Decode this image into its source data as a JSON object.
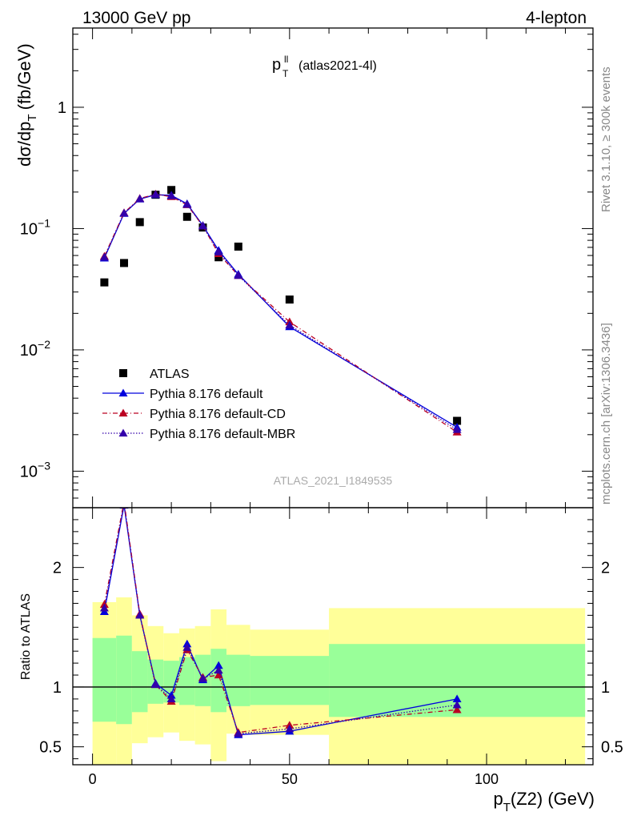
{
  "header": {
    "left": "13000 GeV pp",
    "right": "4-lepton"
  },
  "plot_title": {
    "main": "p",
    "sup": "ll",
    "sub": "T",
    "rest": "(atlas2021-4l)"
  },
  "side_labels": {
    "rivet": "Rivet 3.1.10, ≥ 300k events",
    "mcplots": "mcplots.cern.ch [arXiv:1306.3436]"
  },
  "watermark": "ATLAS_2021_I1849535",
  "colors": {
    "data": "#000000",
    "default": "#0000dd",
    "cd": "#bb0022",
    "mbr": "#3300aa",
    "band_inner": "#99ff99",
    "band_outer": "#ffff99"
  },
  "chart_data": [
    {
      "type": "scatter",
      "panel": "main",
      "ylabel": "dσ/dp_T (fb/GeV)",
      "ylabel_main": "dσ/dp",
      "ylabel_sub": "T",
      "ylabel_unit": "(fb/GeV)",
      "yscale": "log",
      "xlim": [
        -5,
        127
      ],
      "ylim": [
        0.0005,
        4.5
      ],
      "yticks": [
        {
          "value": 1,
          "mant": "1",
          "exp": ""
        },
        {
          "value": 0.1,
          "mant": "10",
          "exp": "−1"
        },
        {
          "value": 0.01,
          "mant": "10",
          "exp": "−2"
        },
        {
          "value": 0.001,
          "mant": "10",
          "exp": "−3"
        }
      ],
      "legend_position": "bottom-left",
      "series": [
        {
          "key": "atlas",
          "name": "ATLAS",
          "marker": "square",
          "x": [
            3,
            8,
            12,
            16,
            20,
            24,
            28,
            32,
            37,
            50,
            92.5
          ],
          "y": [
            0.036,
            0.052,
            0.113,
            0.19,
            0.208,
            0.125,
            0.102,
            0.058,
            0.071,
            0.026,
            0.0026
          ]
        },
        {
          "key": "default",
          "name": "Pythia 8.176 default",
          "marker": "triangle",
          "line": "solid",
          "x": [
            3,
            8,
            12,
            16,
            20,
            24,
            28,
            32,
            37,
            50,
            92.5
          ],
          "y": [
            0.057,
            0.133,
            0.175,
            0.19,
            0.188,
            0.16,
            0.106,
            0.066,
            0.042,
            0.0155,
            0.0023
          ]
        },
        {
          "key": "cd",
          "name": "Pythia 8.176 default-CD",
          "marker": "triangle",
          "line": "dashdot",
          "x": [
            3,
            8,
            12,
            16,
            20,
            24,
            28,
            32,
            37,
            50,
            92.5
          ],
          "y": [
            0.059,
            0.135,
            0.177,
            0.192,
            0.183,
            0.157,
            0.105,
            0.062,
            0.041,
            0.017,
            0.0021
          ]
        },
        {
          "key": "mbr",
          "name": "Pythia 8.176 default-MBR",
          "marker": "triangle",
          "line": "dotted",
          "x": [
            3,
            8,
            12,
            16,
            20,
            24,
            28,
            32,
            37,
            50,
            92.5
          ],
          "y": [
            0.058,
            0.134,
            0.176,
            0.191,
            0.186,
            0.158,
            0.105,
            0.064,
            0.041,
            0.016,
            0.0022
          ]
        }
      ]
    },
    {
      "type": "line",
      "panel": "ratio",
      "ylabel": "Ratio to ATLAS",
      "xlabel": "p_T(Z2) (GeV)",
      "xlabel_main": "p",
      "xlabel_sub": "T",
      "xlabel_rest": "(Z2) (GeV)",
      "xlim": [
        -5,
        127
      ],
      "ylim": [
        0.35,
        2.5
      ],
      "xticks": [
        0,
        50,
        100
      ],
      "yticks": [
        {
          "value": 0.5,
          "label": "0.5"
        },
        {
          "value": 1,
          "label": "1"
        },
        {
          "value": 2,
          "label": "2"
        }
      ],
      "bands": [
        {
          "x0": 0,
          "x1": 6,
          "inner": [
            0.71,
            1.41
          ],
          "outer": [
            0.35,
            1.71
          ]
        },
        {
          "x0": 6,
          "x1": 10,
          "inner": [
            0.69,
            1.43
          ],
          "outer": [
            0.35,
            1.75
          ]
        },
        {
          "x0": 10,
          "x1": 14,
          "inner": [
            0.79,
            1.3
          ],
          "outer": [
            0.53,
            1.6
          ]
        },
        {
          "x0": 14,
          "x1": 18,
          "inner": [
            0.86,
            1.23
          ],
          "outer": [
            0.58,
            1.51
          ]
        },
        {
          "x0": 18,
          "x1": 22,
          "inner": [
            0.87,
            1.22
          ],
          "outer": [
            0.62,
            1.45
          ]
        },
        {
          "x0": 22,
          "x1": 26,
          "inner": [
            0.85,
            1.25
          ],
          "outer": [
            0.55,
            1.49
          ]
        },
        {
          "x0": 26,
          "x1": 30,
          "inner": [
            0.84,
            1.27
          ],
          "outer": [
            0.52,
            1.51
          ]
        },
        {
          "x0": 30,
          "x1": 34,
          "inner": [
            0.79,
            1.32
          ],
          "outer": [
            0.38,
            1.65
          ]
        },
        {
          "x0": 34,
          "x1": 40,
          "inner": [
            0.84,
            1.27
          ],
          "outer": [
            0.61,
            1.52
          ]
        },
        {
          "x0": 40,
          "x1": 60,
          "inner": [
            0.85,
            1.26
          ],
          "outer": [
            0.6,
            1.48
          ]
        },
        {
          "x0": 60,
          "x1": 125,
          "inner": [
            0.75,
            1.36
          ],
          "outer": [
            0.35,
            1.66
          ]
        }
      ],
      "series": [
        {
          "key": "default",
          "name": "Pythia 8.176 default",
          "x": [
            3,
            8,
            12,
            16,
            20,
            24,
            28,
            32,
            37,
            50,
            92.5
          ],
          "y": [
            1.63,
            2.52,
            1.6,
            1.03,
            0.93,
            1.36,
            1.06,
            1.18,
            0.6,
            0.63,
            0.9
          ]
        },
        {
          "key": "cd",
          "name": "Pythia 8.176 default-CD",
          "x": [
            3,
            8,
            12,
            16,
            20,
            24,
            28,
            32,
            37,
            50,
            92.5
          ],
          "y": [
            1.69,
            2.55,
            1.61,
            1.02,
            0.88,
            1.31,
            1.08,
            1.1,
            0.62,
            0.68,
            0.81
          ]
        },
        {
          "key": "mbr",
          "name": "Pythia 8.176 default-MBR",
          "x": [
            3,
            8,
            12,
            16,
            20,
            24,
            28,
            32,
            37,
            50,
            92.5
          ],
          "y": [
            1.66,
            2.53,
            1.6,
            1.02,
            0.9,
            1.33,
            1.07,
            1.14,
            0.61,
            0.65,
            0.85
          ]
        }
      ]
    }
  ]
}
